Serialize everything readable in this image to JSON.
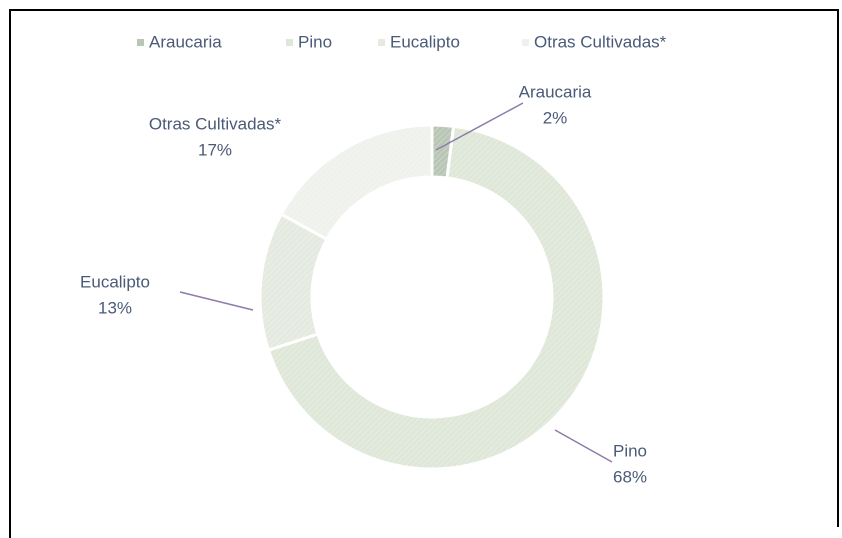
{
  "chart_data": {
    "type": "donut",
    "categories": [
      "Araucaria",
      "Pino",
      "Eucalipto",
      "Otras Cultivadas*"
    ],
    "values": [
      2,
      68,
      13,
      17
    ],
    "value_labels": [
      "2%",
      "68%",
      "13%",
      "17%"
    ],
    "colors": [
      "#b9c6b6",
      "#dfe7d9",
      "#e5eae1",
      "#eff1ec"
    ],
    "legend": "top"
  }
}
